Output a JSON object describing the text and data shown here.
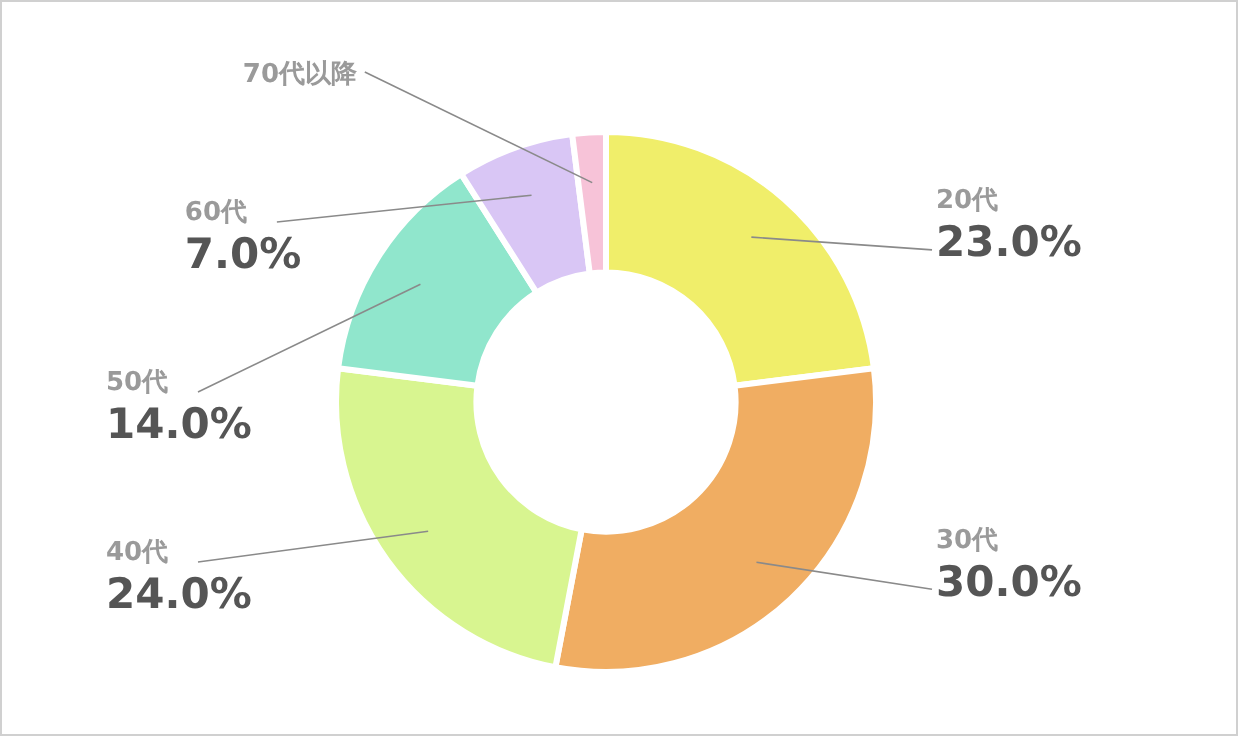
{
  "chart_data": {
    "type": "donut",
    "categories": [
      "20代",
      "30代",
      "40代",
      "50代",
      "60代",
      "70代以降"
    ],
    "values": [
      23,
      30,
      24,
      14,
      7,
      2
    ],
    "value_labels": [
      "23.0%",
      "30.0%",
      "24.0%",
      "14.0%",
      "7.0%",
      null
    ],
    "colors": [
      "#f0ee6a",
      "#f0ad62",
      "#d8f590",
      "#90e6cc",
      "#d9c6f5",
      "#f7c3d8"
    ]
  }
}
